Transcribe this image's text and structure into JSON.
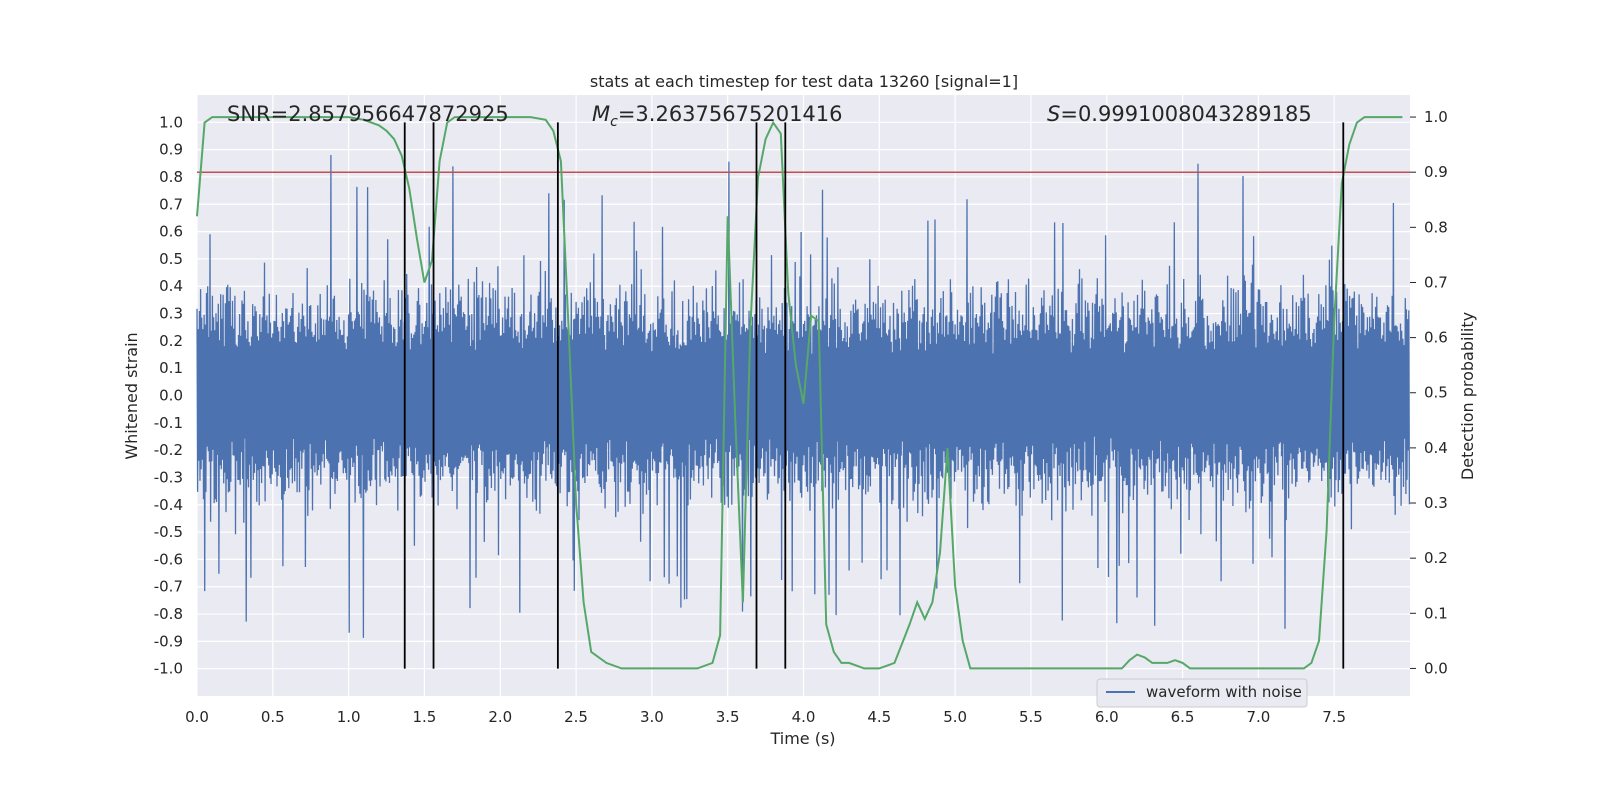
{
  "chart_data": {
    "type": "line",
    "title": "stats at each timestep for test data 13260 [signal=1]",
    "xlabel": "Time (s)",
    "ylabel": "Whitened strain",
    "y2label": "Detection probability",
    "xlim": [
      0.0,
      8.0
    ],
    "ylim": [
      -1.1,
      1.1
    ],
    "y2lim": [
      -0.05,
      1.04
    ],
    "x_ticks": [
      "0.0",
      "0.5",
      "1.0",
      "1.5",
      "2.0",
      "2.5",
      "3.0",
      "3.5",
      "4.0",
      "4.5",
      "5.0",
      "5.5",
      "6.0",
      "6.5",
      "7.0",
      "7.5"
    ],
    "x_tick_values": [
      0.0,
      0.5,
      1.0,
      1.5,
      2.0,
      2.5,
      3.0,
      3.5,
      4.0,
      4.5,
      5.0,
      5.5,
      6.0,
      6.5,
      7.0,
      7.5
    ],
    "y_ticks": [
      "1.0",
      "0.9",
      "0.8",
      "0.7",
      "0.6",
      "0.5",
      "0.4",
      "0.3",
      "0.2",
      "0.1",
      "0.0",
      "-0.1",
      "-0.2",
      "-0.3",
      "-0.4",
      "-0.5",
      "-0.6",
      "-0.7",
      "-0.8",
      "-0.9",
      "-1.0"
    ],
    "y_tick_values": [
      1.0,
      0.9,
      0.8,
      0.7,
      0.6,
      0.5,
      0.4,
      0.3,
      0.2,
      0.1,
      0.0,
      -0.1,
      -0.2,
      -0.3,
      -0.4,
      -0.5,
      -0.6,
      -0.7,
      -0.8,
      -0.9,
      -1.0
    ],
    "y2_ticks": [
      "1.0",
      "0.9",
      "0.8",
      "0.7",
      "0.6",
      "0.5",
      "0.4",
      "0.3",
      "0.2",
      "0.1",
      "0.0"
    ],
    "y2_tick_values": [
      1.0,
      0.9,
      0.8,
      0.7,
      0.6,
      0.5,
      0.4,
      0.3,
      0.2,
      0.1,
      0.0
    ],
    "annotations": {
      "snr": "SNR=2.857956647872925",
      "mc_symbol": "M",
      "mc_sub": "c",
      "mc_value": "=3.26375675201416",
      "s_symbol": "S",
      "s_value": "=0.9991008043289185"
    },
    "threshold": {
      "axis": "y2",
      "value": 0.9,
      "color": "#c44e52"
    },
    "vertical_lines_x": [
      1.37,
      1.56,
      2.38,
      3.69,
      3.88,
      7.56
    ],
    "vertical_line_range": [
      -1.0,
      1.0
    ],
    "series": [
      {
        "name": "waveform with noise",
        "axis": "y",
        "color": "#4c72b0",
        "description": "noise waveform, roughly +/-0.45 band with spikes up to about +/-0.9",
        "sample_rate_hz": 256,
        "duration_s": 8.0,
        "band_amplitude": 0.45,
        "peak_amplitude": 0.95
      },
      {
        "name": "detection probability",
        "axis": "y2",
        "color": "#55a868",
        "x": [
          0.0,
          0.05,
          0.1,
          0.2,
          0.4,
          0.6,
          0.8,
          1.0,
          1.1,
          1.2,
          1.25,
          1.3,
          1.35,
          1.4,
          1.45,
          1.5,
          1.55,
          1.6,
          1.65,
          1.7,
          1.8,
          2.0,
          2.2,
          2.3,
          2.35,
          2.4,
          2.45,
          2.5,
          2.55,
          2.6,
          2.7,
          2.8,
          2.9,
          3.0,
          3.1,
          3.2,
          3.3,
          3.4,
          3.45,
          3.5,
          3.55,
          3.6,
          3.65,
          3.7,
          3.75,
          3.8,
          3.85,
          3.9,
          3.95,
          4.0,
          4.05,
          4.1,
          4.15,
          4.2,
          4.25,
          4.3,
          4.4,
          4.5,
          4.6,
          4.7,
          4.75,
          4.8,
          4.85,
          4.9,
          4.95,
          5.0,
          5.05,
          5.1,
          5.2,
          5.4,
          5.6,
          5.8,
          6.0,
          6.1,
          6.15,
          6.2,
          6.25,
          6.3,
          6.4,
          6.45,
          6.5,
          6.55,
          6.6,
          6.8,
          7.0,
          7.2,
          7.3,
          7.35,
          7.4,
          7.45,
          7.5,
          7.55,
          7.6,
          7.65,
          7.7,
          7.8,
          7.95
        ],
        "values": [
          0.82,
          0.99,
          1.0,
          1.0,
          1.0,
          1.0,
          1.0,
          1.0,
          0.995,
          0.985,
          0.975,
          0.96,
          0.93,
          0.87,
          0.78,
          0.7,
          0.74,
          0.92,
          0.99,
          1.0,
          1.0,
          1.0,
          1.0,
          0.995,
          0.975,
          0.92,
          0.62,
          0.3,
          0.12,
          0.03,
          0.01,
          0.0,
          0.0,
          0.0,
          0.0,
          0.0,
          0.0,
          0.01,
          0.06,
          0.82,
          0.45,
          0.12,
          0.62,
          0.89,
          0.96,
          0.99,
          0.97,
          0.68,
          0.55,
          0.48,
          0.64,
          0.63,
          0.08,
          0.03,
          0.01,
          0.01,
          0.0,
          0.0,
          0.01,
          0.08,
          0.12,
          0.09,
          0.12,
          0.21,
          0.4,
          0.15,
          0.05,
          0.0,
          0.0,
          0.0,
          0.0,
          0.0,
          0.0,
          0.0,
          0.015,
          0.025,
          0.02,
          0.01,
          0.01,
          0.015,
          0.01,
          0.0,
          0.0,
          0.0,
          0.0,
          0.0,
          0.0,
          0.01,
          0.05,
          0.25,
          0.63,
          0.88,
          0.95,
          0.99,
          1.0,
          1.0,
          1.0
        ]
      }
    ],
    "legend": {
      "entries": [
        "waveform with noise"
      ],
      "position": "lower-right"
    }
  }
}
